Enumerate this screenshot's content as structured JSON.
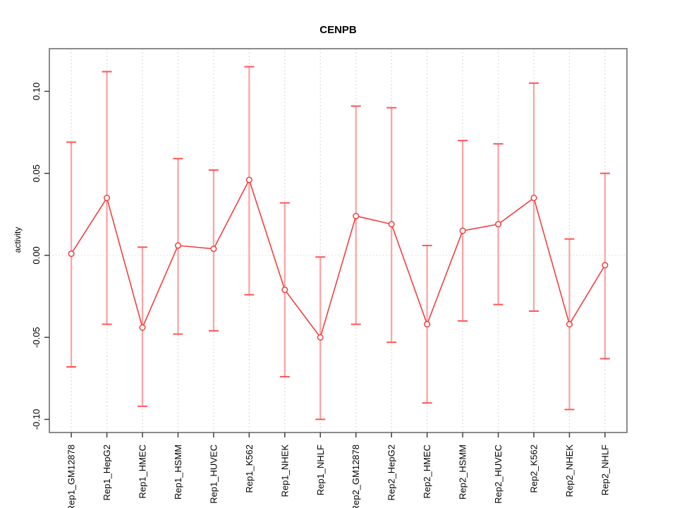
{
  "title": "CENPB",
  "chart_data": {
    "type": "line",
    "title": "CENPB",
    "xlabel": "",
    "ylabel": "activity",
    "legend_position": "none",
    "grid": "vertical dashed line at each category; horizontal dotted line at y=0",
    "point_style": "open-circle",
    "error_bars": true,
    "ylim": [
      -0.108,
      0.126
    ],
    "yticks": [
      0.1,
      0.05,
      0.0,
      -0.05,
      -0.1
    ],
    "categories": [
      "Rep1_GM12878",
      "Rep1_HepG2",
      "Rep1_HMEC",
      "Rep1_HSMM",
      "Rep1_HUVEC",
      "Rep1_K562",
      "Rep1_NHEK",
      "Rep1_NHLF",
      "Rep2_GM12878",
      "Rep2_HepG2",
      "Rep2_HMEC",
      "Rep2_HSMM",
      "Rep2_HUVEC",
      "Rep2_K562",
      "Rep2_NHEK",
      "Rep2_NHLF"
    ],
    "series": [
      {
        "name": "activity",
        "values": [
          0.001,
          0.035,
          -0.044,
          0.006,
          0.004,
          0.046,
          -0.021,
          -0.05,
          0.024,
          0.019,
          -0.042,
          0.015,
          0.019,
          0.035,
          -0.042,
          -0.006
        ],
        "error_high": [
          0.069,
          0.112,
          0.005,
          0.059,
          0.052,
          0.115,
          0.032,
          -0.001,
          0.091,
          0.09,
          0.006,
          0.07,
          0.068,
          0.105,
          0.01,
          0.05
        ],
        "error_low": [
          -0.068,
          -0.042,
          -0.092,
          -0.048,
          -0.046,
          -0.024,
          -0.074,
          -0.1,
          -0.042,
          -0.053,
          -0.09,
          -0.04,
          -0.03,
          -0.034,
          -0.094,
          -0.063
        ]
      }
    ],
    "colors": {
      "line": "#f04040",
      "point_stroke": "#f04040",
      "point_fill": "#ffffff",
      "error_stem": "#ffa0a0",
      "error_cap": "#ff5555",
      "grid": "#dddddd",
      "zero_line": "#dddddd",
      "box": "#808080",
      "tick": "#404040",
      "text": "#000000"
    }
  }
}
